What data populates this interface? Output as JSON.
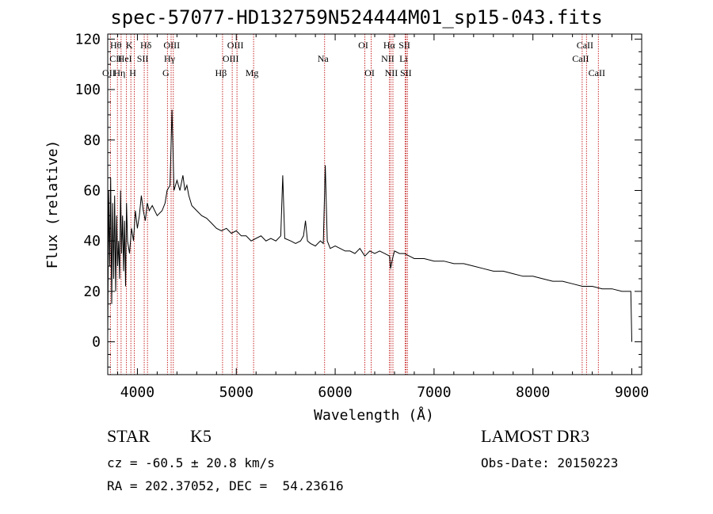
{
  "chart_data": {
    "type": "line",
    "title": "spec-57077-HD132759N524444M01_sp15-043.fits",
    "xlabel": "Wavelength (Å)",
    "ylabel": "Flux (relative)",
    "xlim": [
      3700,
      9100
    ],
    "ylim": [
      -13,
      122
    ],
    "x_ticks": [
      4000,
      5000,
      6000,
      7000,
      8000,
      9000
    ],
    "y_ticks": [
      0,
      20,
      40,
      60,
      80,
      100,
      120
    ],
    "grid": false,
    "series": [
      {
        "name": "spectrum",
        "x": [
          3700,
          3710,
          3720,
          3730,
          3740,
          3750,
          3760,
          3770,
          3780,
          3790,
          3800,
          3810,
          3820,
          3830,
          3840,
          3850,
          3860,
          3870,
          3880,
          3890,
          3900,
          3920,
          3940,
          3960,
          3980,
          4000,
          4020,
          4040,
          4060,
          4080,
          4100,
          4120,
          4150,
          4200,
          4250,
          4280,
          4300,
          4330,
          4350,
          4370,
          4400,
          4430,
          4460,
          4480,
          4500,
          4520,
          4550,
          4600,
          4650,
          4700,
          4750,
          4800,
          4850,
          4900,
          4950,
          5000,
          5050,
          5100,
          5150,
          5200,
          5250,
          5300,
          5350,
          5400,
          5450,
          5470,
          5490,
          5550,
          5600,
          5650,
          5680,
          5700,
          5720,
          5750,
          5800,
          5850,
          5880,
          5900,
          5920,
          5950,
          6000,
          6050,
          6100,
          6150,
          6200,
          6250,
          6300,
          6350,
          6400,
          6450,
          6500,
          6550,
          6560,
          6580,
          6600,
          6650,
          6700,
          6750,
          6800,
          6900,
          7000,
          7100,
          7200,
          7300,
          7400,
          7500,
          7600,
          7700,
          7800,
          7900,
          8000,
          8100,
          8200,
          8300,
          8400,
          8500,
          8600,
          8700,
          8800,
          8900,
          8950,
          8990,
          9000
        ],
        "y": [
          2,
          60,
          30,
          65,
          15,
          55,
          25,
          58,
          20,
          50,
          30,
          40,
          25,
          60,
          35,
          50,
          28,
          48,
          22,
          55,
          40,
          35,
          45,
          40,
          52,
          45,
          50,
          58,
          52,
          48,
          55,
          52,
          54,
          50,
          52,
          55,
          60,
          62,
          92,
          60,
          64,
          60,
          66,
          60,
          62,
          58,
          54,
          52,
          50,
          49,
          47,
          45,
          44,
          45,
          43,
          44,
          42,
          42,
          40,
          41,
          42,
          40,
          41,
          40,
          42,
          66,
          41,
          40,
          39,
          40,
          42,
          48,
          40,
          39,
          38,
          40,
          39,
          70,
          40,
          37,
          38,
          37,
          36,
          36,
          35,
          37,
          34,
          36,
          35,
          36,
          35,
          34,
          29,
          33,
          36,
          35,
          35,
          34,
          33,
          33,
          32,
          32,
          31,
          31,
          30,
          29,
          28,
          28,
          27,
          26,
          26,
          25,
          24,
          24,
          23,
          22,
          22,
          21,
          21,
          20,
          20,
          20,
          0
        ]
      }
    ],
    "annotations": {
      "line_labels": [
        {
          "label": "Hθ",
          "wavelength": 3798,
          "row": 1
        },
        {
          "label": "CII",
          "wavelength": 3798,
          "row": 2
        },
        {
          "label": "OII",
          "wavelength": 3727,
          "row": 3
        },
        {
          "label": "K",
          "wavelength": 3934,
          "row": 1
        },
        {
          "label": "HeI",
          "wavelength": 3889,
          "row": 2
        },
        {
          "label": "Hη",
          "wavelength": 3835,
          "row": 3
        },
        {
          "label": "Hδ",
          "wavelength": 4102,
          "row": 1
        },
        {
          "label": "SII",
          "wavelength": 4069,
          "row": 2
        },
        {
          "label": "H",
          "wavelength": 3969,
          "row": 3
        },
        {
          "label": "OIII",
          "wavelength": 4363,
          "row": 1
        },
        {
          "label": "Hγ",
          "wavelength": 4341,
          "row": 2
        },
        {
          "label": "G",
          "wavelength": 4304,
          "row": 3
        },
        {
          "label": "OIII",
          "wavelength": 5007,
          "row": 1
        },
        {
          "label": "OIII",
          "wavelength": 4959,
          "row": 2
        },
        {
          "label": "Hβ",
          "wavelength": 4861,
          "row": 3
        },
        {
          "label": "Mg",
          "wavelength": 5175,
          "row": 3
        },
        {
          "label": "Na",
          "wavelength": 5893,
          "row": 2
        },
        {
          "label": "OI",
          "wavelength": 6300,
          "row": 1
        },
        {
          "label": "OI",
          "wavelength": 6364,
          "row": 3
        },
        {
          "label": "Hα",
          "wavelength": 6563,
          "row": 1
        },
        {
          "label": "SII",
          "wavelength": 6717,
          "row": 1
        },
        {
          "label": "NII",
          "wavelength": 6548,
          "row": 2
        },
        {
          "label": "Li",
          "wavelength": 6708,
          "row": 2
        },
        {
          "label": "NII",
          "wavelength": 6584,
          "row": 3
        },
        {
          "label": "SII",
          "wavelength": 6731,
          "row": 3
        },
        {
          "label": "CaII",
          "wavelength": 8542,
          "row": 1
        },
        {
          "label": "CaII",
          "wavelength": 8498,
          "row": 2
        },
        {
          "label": "CaII",
          "wavelength": 8662,
          "row": 3
        }
      ],
      "line_markers": [
        3727,
        3798,
        3835,
        3889,
        3934,
        3969,
        4069,
        4102,
        4304,
        4341,
        4363,
        4861,
        4959,
        5007,
        5175,
        5893,
        6300,
        6364,
        6548,
        6563,
        6584,
        6708,
        6717,
        6731,
        8498,
        8542,
        8662
      ]
    }
  },
  "info": {
    "object_class": "STAR",
    "subclass": "K5",
    "survey": "LAMOST DR3",
    "redshift": "cz = -60.5 ± 20.8 km/s",
    "obs_date": "Obs-Date: 20150223",
    "coords": "RA = 202.37052, DEC =  54.23616"
  },
  "colors": {
    "line_marker": "#c62828",
    "spectrum": "#000000"
  }
}
